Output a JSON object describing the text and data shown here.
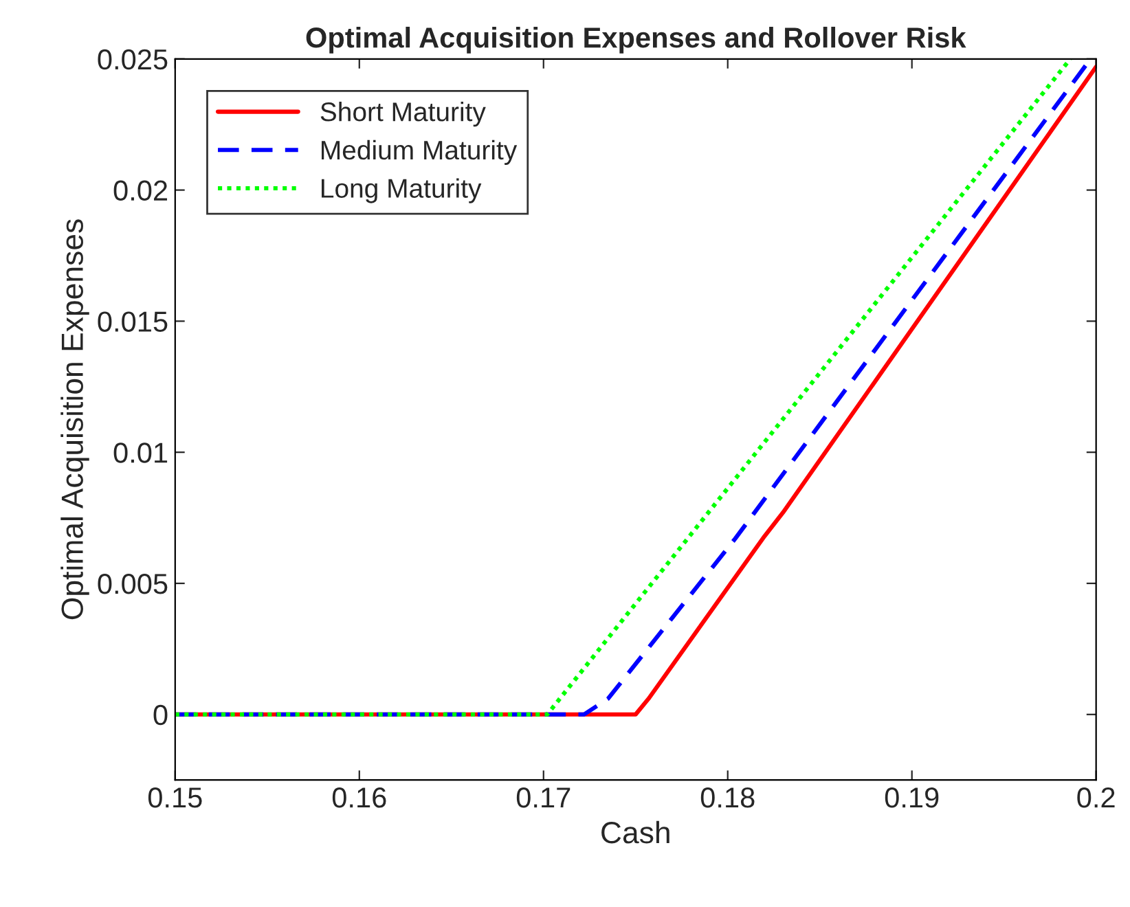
{
  "chart_data": {
    "type": "line",
    "title": "Optimal Acquisition Expenses and Rollover Risk",
    "xlabel": "Cash",
    "ylabel": "Optimal Acquisition Expenses",
    "series": [
      {
        "name": "Short Maturity",
        "color": "#ff0000",
        "line_style": "solid",
        "x": [
          0.15,
          0.175,
          0.1757,
          0.182,
          0.183,
          0.2
        ],
        "values": [
          0,
          0,
          0.0006,
          0.0068,
          0.0077,
          0.0247
        ]
      },
      {
        "name": "Medium Maturity",
        "color": "#0000ff",
        "line_style": "dashed",
        "x": [
          0.15,
          0.1722,
          0.1735,
          0.1804,
          0.1997
        ],
        "values": [
          0,
          0,
          0.0006,
          0.0067,
          0.025
        ]
      },
      {
        "name": "Long Maturity",
        "color": "#00ff00",
        "line_style": "dotted",
        "x": [
          0.15,
          0.1702,
          0.1986
        ],
        "values": [
          0,
          0,
          0.025
        ]
      }
    ],
    "xlim": [
      0.15,
      0.2
    ],
    "xticks": [
      0.15,
      0.16,
      0.17,
      0.18,
      0.19,
      0.2
    ],
    "ylim": [
      -0.0025,
      0.025
    ],
    "yticks": [
      0,
      0.005,
      0.01,
      0.015,
      0.02,
      0.025
    ],
    "grid": false,
    "legend": "top left",
    "marker": "none"
  }
}
